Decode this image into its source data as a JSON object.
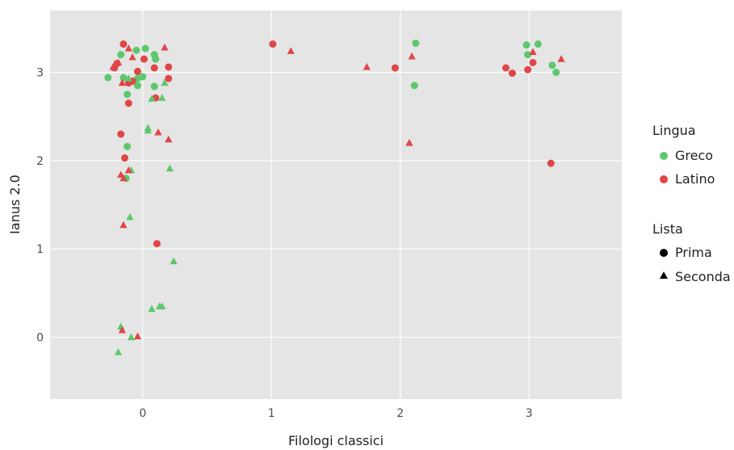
{
  "chart_data": {
    "type": "scatter",
    "title": "",
    "xlabel": "Filologi classici",
    "ylabel": "Ianus 2.0",
    "xlim": [
      -0.72,
      3.72
    ],
    "ylim": [
      -0.7,
      3.7
    ],
    "xticks": [
      0,
      1,
      2,
      3
    ],
    "yticks": [
      0,
      1,
      2,
      3
    ],
    "grid": true,
    "legend_placement": "right",
    "colors": {
      "Greco": "#5cc86e",
      "Latino": "#e04646",
      "panel": "#e5e5e5",
      "grid": "#ffffff",
      "shape_key": "#000000"
    },
    "legends": {
      "color": {
        "title": "Lingua",
        "entries": [
          "Greco",
          "Latino"
        ]
      },
      "shape": {
        "title": "Lista",
        "entries": [
          "Prima",
          "Seconda"
        ],
        "shapes": [
          "circle",
          "triangle"
        ]
      }
    },
    "series": [
      {
        "name": "Greco",
        "shape": "circle",
        "x": [
          -0.27,
          -0.15,
          -0.17,
          -0.05,
          -0.12,
          -0.04,
          0.02,
          -0.04,
          0.0,
          0.09,
          0.1,
          0.09,
          -0.12,
          -0.13,
          2.12,
          2.11,
          2.98,
          2.99,
          3.07,
          3.18,
          3.21
        ],
        "y": [
          2.94,
          2.94,
          3.2,
          3.25,
          2.75,
          2.85,
          3.27,
          2.93,
          2.95,
          3.2,
          3.15,
          2.84,
          2.16,
          1.8,
          3.33,
          2.85,
          3.31,
          3.2,
          3.32,
          3.08,
          3.0
        ]
      },
      {
        "name": "Latino",
        "shape": "circle",
        "x": [
          -0.22,
          -0.2,
          -0.15,
          -0.08,
          -0.11,
          -0.11,
          -0.04,
          0.01,
          0.09,
          0.2,
          0.2,
          0.1,
          -0.17,
          -0.14,
          0.11,
          1.01,
          1.96,
          2.82,
          2.87,
          2.99,
          3.03,
          3.17
        ],
        "y": [
          3.05,
          3.1,
          3.32,
          2.9,
          2.88,
          2.65,
          3.01,
          3.15,
          3.05,
          3.06,
          2.93,
          2.71,
          2.3,
          2.03,
          1.06,
          3.32,
          3.05,
          3.05,
          2.99,
          3.03,
          3.11,
          1.97
        ]
      },
      {
        "name": "Greco",
        "shape": "triangle",
        "x": [
          -0.11,
          0.07,
          0.17,
          0.15,
          0.04,
          0.04,
          -0.09,
          0.21,
          -0.1,
          0.24,
          0.07,
          0.13,
          0.15,
          -0.17,
          -0.19,
          -0.09
        ],
        "y": [
          2.93,
          2.7,
          2.88,
          2.71,
          2.34,
          2.37,
          1.89,
          1.91,
          1.36,
          0.86,
          0.32,
          0.35,
          0.35,
          0.12,
          -0.17,
          0.0
        ]
      },
      {
        "name": "Latino",
        "shape": "triangle",
        "x": [
          -0.23,
          -0.19,
          -0.16,
          -0.11,
          -0.08,
          0.17,
          0.12,
          0.2,
          -0.17,
          -0.15,
          -0.11,
          -0.15,
          -0.16,
          -0.04,
          1.15,
          1.74,
          2.09,
          2.07,
          3.03,
          3.25
        ],
        "y": [
          3.06,
          3.11,
          2.88,
          3.27,
          3.17,
          3.28,
          2.32,
          2.24,
          1.84,
          1.8,
          1.89,
          1.27,
          0.08,
          0.01,
          3.24,
          3.06,
          3.18,
          2.2,
          3.23,
          3.15
        ]
      }
    ]
  }
}
